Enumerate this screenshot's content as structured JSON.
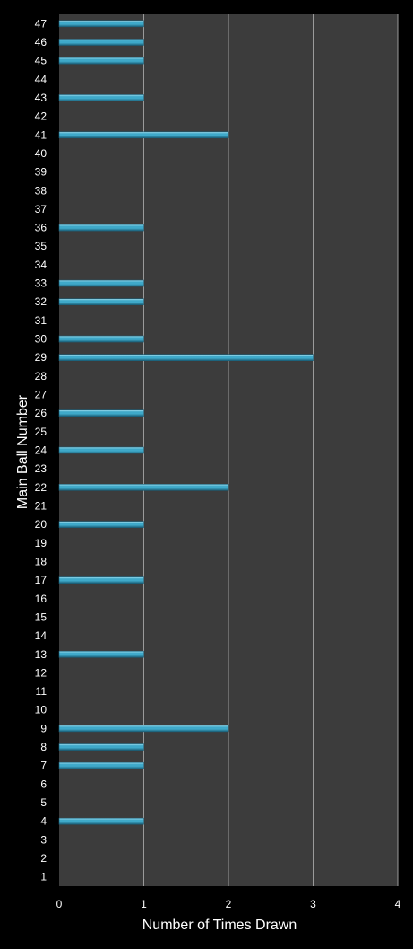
{
  "chart_data": {
    "type": "bar",
    "orientation": "horizontal",
    "title": "",
    "xlabel": "Number of Times Drawn",
    "ylabel": "Main Ball Number",
    "xlim": [
      0,
      4
    ],
    "x_ticks": [
      "0",
      "1",
      "2",
      "3",
      "4"
    ],
    "categories": [
      "1",
      "2",
      "3",
      "4",
      "5",
      "6",
      "7",
      "8",
      "9",
      "10",
      "11",
      "12",
      "13",
      "14",
      "15",
      "16",
      "17",
      "18",
      "19",
      "20",
      "21",
      "22",
      "23",
      "24",
      "25",
      "26",
      "27",
      "28",
      "29",
      "30",
      "31",
      "32",
      "33",
      "34",
      "35",
      "36",
      "37",
      "38",
      "39",
      "40",
      "41",
      "42",
      "43",
      "44",
      "45",
      "46",
      "47"
    ],
    "values": [
      0,
      0,
      0,
      1,
      0,
      0,
      1,
      1,
      2,
      0,
      0,
      0,
      1,
      0,
      0,
      0,
      1,
      0,
      0,
      1,
      0,
      2,
      0,
      1,
      0,
      1,
      0,
      0,
      3,
      1,
      0,
      1,
      1,
      0,
      0,
      1,
      0,
      0,
      0,
      0,
      2,
      0,
      1,
      0,
      1,
      1,
      1
    ],
    "grid": "vertical",
    "legend": "none",
    "colors": {
      "background": "#000000",
      "plot_area": "#3c3c3c",
      "gridline": "#9a9a9a",
      "bar": "#3fa9c9",
      "bar_highlight": "#a6e0f0",
      "bar_shadow": "#1a5f78",
      "text": "#ffffff"
    }
  }
}
